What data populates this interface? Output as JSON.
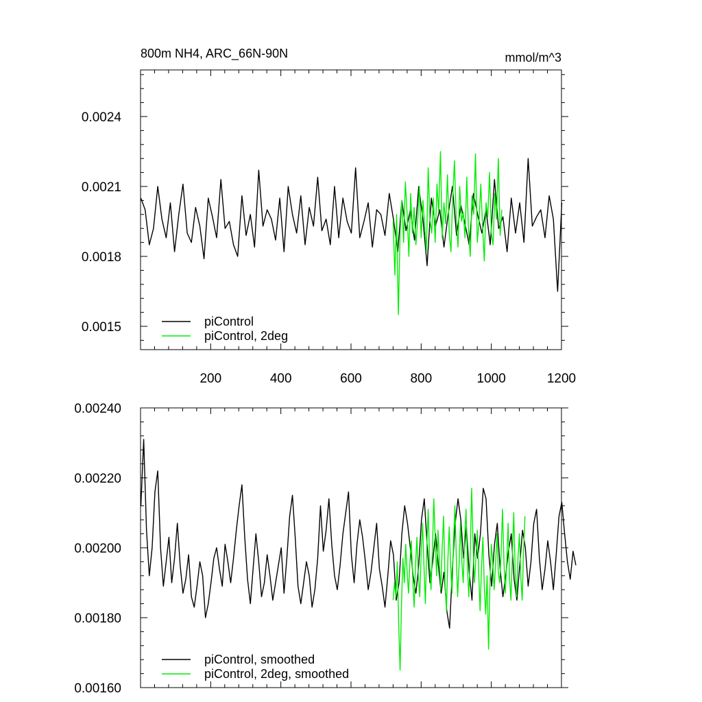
{
  "chart_data": [
    {
      "type": "line",
      "title": "800m NH4, ARC_66N-90N",
      "units": "mmol/m^3",
      "xlim": [
        0,
        1200
      ],
      "ylim": [
        0.0014,
        0.0026
      ],
      "x_ticks": [
        200,
        400,
        600,
        800,
        1000,
        1200
      ],
      "x_tick_labels": [
        "200",
        "400",
        "600",
        "800",
        "1000",
        "1200"
      ],
      "y_ticks": [
        0.0015,
        0.0018,
        0.0021,
        0.0024
      ],
      "y_tick_labels": [
        "0.0015",
        "0.0018",
        "0.0021",
        "0.0024"
      ],
      "grid": false,
      "legend_position": "bottom-left",
      "series": [
        {
          "name": "piControl",
          "color": "#000000",
          "x_start": 1,
          "x_step": 12,
          "values": [
            0.00205,
            0.002,
            0.00185,
            0.00192,
            0.0021,
            0.00196,
            0.00188,
            0.00203,
            0.00182,
            0.00198,
            0.00211,
            0.0019,
            0.00186,
            0.00201,
            0.00193,
            0.00179,
            0.00205,
            0.00197,
            0.00188,
            0.00213,
            0.00192,
            0.00195,
            0.00185,
            0.0018,
            0.00206,
            0.00189,
            0.00198,
            0.00184,
            0.00217,
            0.00193,
            0.002,
            0.00196,
            0.00187,
            0.00205,
            0.00182,
            0.0021,
            0.00198,
            0.0019,
            0.00206,
            0.00185,
            0.00201,
            0.00193,
            0.00214,
            0.00191,
            0.00196,
            0.00185,
            0.0021,
            0.00188,
            0.00205,
            0.00195,
            0.0019,
            0.00218,
            0.00188,
            0.00195,
            0.00203,
            0.00184,
            0.002,
            0.00198,
            0.00189,
            0.00207,
            0.00196,
            0.00182,
            0.00204,
            0.00191,
            0.002,
            0.00187,
            0.0021,
            0.00196,
            0.00176,
            0.00205,
            0.00193,
            0.002,
            0.00184,
            0.00198,
            0.0021,
            0.00189,
            0.00202,
            0.00194,
            0.00185,
            0.00207,
            0.00198,
            0.0019,
            0.002,
            0.00185,
            0.00213,
            0.00192,
            0.00197,
            0.00182,
            0.00205,
            0.0019,
            0.00203,
            0.00186,
            0.00222,
            0.00193,
            0.00197,
            0.002,
            0.00188,
            0.00206,
            0.00196,
            0.00165,
            0.00203
          ]
        },
        {
          "name": "piControl, 2deg",
          "color": "#00ee00",
          "x_start": 720,
          "x_step": 5,
          "values": [
            0.00195,
            0.00172,
            0.00198,
            0.00155,
            0.0019,
            0.00204,
            0.00186,
            0.00212,
            0.00198,
            0.0018,
            0.00207,
            0.0019,
            0.00201,
            0.00185,
            0.00195,
            0.0021,
            0.00188,
            0.00204,
            0.00193,
            0.00182,
            0.00218,
            0.00196,
            0.0019,
            0.00205,
            0.00186,
            0.00211,
            0.00199,
            0.00225,
            0.00188,
            0.00203,
            0.00194,
            0.00215,
            0.0019,
            0.00182,
            0.00206,
            0.00221,
            0.00196,
            0.00184,
            0.0021,
            0.00195,
            0.00199,
            0.00188,
            0.00214,
            0.00191,
            0.0018,
            0.00206,
            0.00198,
            0.00224,
            0.00186,
            0.00195,
            0.00211,
            0.00193,
            0.00178,
            0.00203,
            0.00197,
            0.00216,
            0.0019,
            0.00185,
            0.00207,
            0.00196,
            0.00222,
            0.00189,
            0.002
          ]
        }
      ]
    },
    {
      "type": "line",
      "xlim": [
        0,
        1200
      ],
      "ylim": [
        0.0016,
        0.0024
      ],
      "y_ticks": [
        0.0016,
        0.0018,
        0.002,
        0.0022,
        0.0024
      ],
      "y_tick_labels": [
        "0.00160",
        "0.00180",
        "0.00200",
        "0.00220",
        "0.00240"
      ],
      "grid": false,
      "legend_position": "bottom-left",
      "series": [
        {
          "name": "piControl, smoothed",
          "color": "#000000",
          "x_start": 1,
          "x_step": 8,
          "values": [
            0.00212,
            0.00231,
            0.00205,
            0.00192,
            0.002,
            0.00216,
            0.00222,
            0.002,
            0.00189,
            0.00196,
            0.00203,
            0.0019,
            0.00197,
            0.00207,
            0.00195,
            0.00187,
            0.00191,
            0.00198,
            0.00186,
            0.00183,
            0.00189,
            0.00196,
            0.00192,
            0.0018,
            0.00184,
            0.0019,
            0.00197,
            0.002,
            0.00194,
            0.00189,
            0.00201,
            0.00196,
            0.0019,
            0.00197,
            0.00205,
            0.00212,
            0.00218,
            0.00203,
            0.00191,
            0.00184,
            0.00194,
            0.00204,
            0.00196,
            0.00186,
            0.0019,
            0.00198,
            0.00192,
            0.00185,
            0.0019,
            0.00195,
            0.002,
            0.00187,
            0.00197,
            0.00209,
            0.00215,
            0.00203,
            0.00189,
            0.00184,
            0.0019,
            0.00196,
            0.00192,
            0.00183,
            0.00188,
            0.00197,
            0.00212,
            0.00199,
            0.00205,
            0.00214,
            0.00201,
            0.00192,
            0.00188,
            0.00195,
            0.00204,
            0.0021,
            0.00216,
            0.00198,
            0.0019,
            0.00201,
            0.00208,
            0.00203,
            0.00196,
            0.00188,
            0.00193,
            0.002,
            0.00207,
            0.00194,
            0.00189,
            0.00183,
            0.00192,
            0.00202,
            0.00198,
            0.00185,
            0.0019,
            0.00204,
            0.00212,
            0.00207,
            0.002,
            0.00192,
            0.00187,
            0.00195,
            0.00208,
            0.00214,
            0.00201,
            0.0019,
            0.00196,
            0.00204,
            0.00195,
            0.00187,
            0.00193,
            0.00182,
            0.00177,
            0.00194,
            0.00207,
            0.00214,
            0.00208,
            0.00197,
            0.00206,
            0.00193,
            0.00185,
            0.00204,
            0.00197,
            0.00204,
            0.00217,
            0.00214,
            0.00198,
            0.00189,
            0.00201,
            0.00207,
            0.00194,
            0.00186,
            0.00192,
            0.00199,
            0.00204,
            0.00191,
            0.00185,
            0.00195,
            0.00205,
            0.002,
            0.00189,
            0.00196,
            0.00207,
            0.00211,
            0.00197,
            0.00188,
            0.00194,
            0.00202,
            0.00196,
            0.00188,
            0.00198,
            0.00209,
            0.00213,
            0.00204,
            0.00196,
            0.00191,
            0.00199,
            0.00195
          ]
        },
        {
          "name": "piControl, 2deg, smoothed",
          "color": "#00ee00",
          "x_start": 720,
          "x_step": 4,
          "values": [
            0.00185,
            0.0019,
            0.00186,
            0.00196,
            0.00178,
            0.00165,
            0.00184,
            0.00197,
            0.0019,
            0.00201,
            0.00193,
            0.00187,
            0.00196,
            0.00202,
            0.00191,
            0.00183,
            0.00195,
            0.00203,
            0.00192,
            0.00186,
            0.00198,
            0.00207,
            0.00195,
            0.00184,
            0.002,
            0.00211,
            0.00196,
            0.00188,
            0.00199,
            0.00214,
            0.00203,
            0.00192,
            0.00205,
            0.00196,
            0.00188,
            0.002,
            0.00209,
            0.0019,
            0.00182,
            0.00196,
            0.00206,
            0.00195,
            0.00187,
            0.00201,
            0.00212,
            0.00198,
            0.00186,
            0.00195,
            0.00207,
            0.00196,
            0.0019,
            0.00203,
            0.00211,
            0.00194,
            0.00186,
            0.00199,
            0.00217,
            0.00201,
            0.0019,
            0.00197,
            0.00205,
            0.00193,
            0.00182,
            0.00194,
            0.00203,
            0.00189,
            0.00181,
            0.00192,
            0.00171,
            0.00189,
            0.00201,
            0.00196,
            0.00188,
            0.00195,
            0.00204,
            0.00193,
            0.0019,
            0.00199,
            0.00211,
            0.00196,
            0.00187,
            0.00196,
            0.00207,
            0.00191,
            0.00185,
            0.00198,
            0.0021,
            0.00193,
            0.00186,
            0.00197,
            0.00204,
            0.00192,
            0.00185,
            0.00199,
            0.00209
          ]
        }
      ]
    }
  ]
}
